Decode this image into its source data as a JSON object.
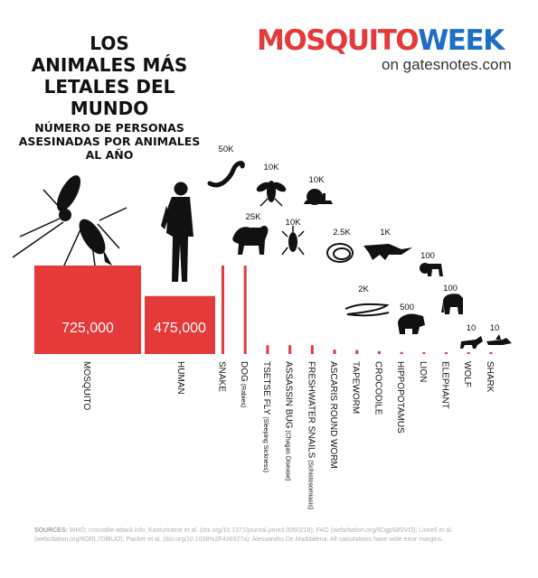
{
  "title_lines": [
    "LOS",
    "ANIMALES MÁS",
    "LETALES DEL",
    "MUNDO"
  ],
  "subtitle_lines": [
    "NÚMERO DE PERSONAS",
    "ASESINADAS POR ANIMALES",
    "AL AÑO"
  ],
  "brand": {
    "logo_part1": "MOSQUITO",
    "logo_part2": "WEEK",
    "sub": "on gatesnotes.com",
    "colors": {
      "part1": "#e5393a",
      "part2": "#1d6ec5"
    }
  },
  "colors": {
    "bar": "#e5393a",
    "silhouette": "#111111"
  },
  "chart_data": {
    "type": "bar",
    "categories": [
      "MOSQUITO",
      "HUMAN",
      "SNAKE",
      "DOG",
      "TSETSE FLY",
      "ASSASSIN BUG",
      "FRESHWATER SNAILS",
      "ASCARIS ROUND WORM",
      "TAPEWORM",
      "CROCODILE",
      "HIPPOPOTAMUS",
      "LION",
      "ELEPHANT",
      "WOLF",
      "SHARK"
    ],
    "category_notes": [
      "",
      "",
      "",
      "(Rabies)",
      "(Sleeping Sickness)",
      "(Chagas Disease)",
      "(Schistosomiasis)",
      "",
      "",
      "",
      "",
      "",
      "",
      "",
      ""
    ],
    "values": [
      725000,
      475000,
      50000,
      25000,
      10000,
      10000,
      10000,
      2500,
      2000,
      1000,
      500,
      100,
      100,
      10,
      10
    ],
    "value_labels": [
      "725,000",
      "475,000",
      "50K",
      "25K",
      "10K",
      "10K",
      "10K",
      "2.5K",
      "2K",
      "1K",
      "500",
      "100",
      "100",
      "10",
      "10"
    ],
    "icons": [
      "mosquito-icon",
      "human-icon",
      "snake-icon",
      "dog-icon",
      "tsetse-fly-icon",
      "assassin-bug-icon",
      "snail-icon",
      "roundworm-icon",
      "tapeworm-icon",
      "crocodile-icon",
      "hippopotamus-icon",
      "lion-icon",
      "elephant-icon",
      "wolf-icon",
      "shark-icon"
    ]
  },
  "sources": {
    "label": "SOURCES:",
    "text": "WHO; crocodile-attack.info; Kasturiratne et al. (doi.org/10.1371/journal.pmed.0050218); FAO (webcitation.org/6DgpS8SVO); Linnell et al. (webcitation.org/6ORL7DlBUO); Packer et al. (doi.org/10.1038%2F436927a); Alessandro De Maddalena.  All calculations have wide error margins."
  }
}
